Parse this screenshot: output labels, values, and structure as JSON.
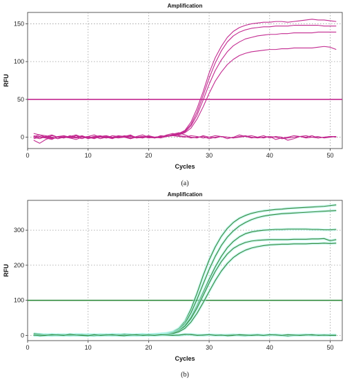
{
  "chart_data": [
    {
      "type": "line",
      "title": "Amplification",
      "xlabel": "Cycles",
      "ylabel": "RFU",
      "caption": "(a)",
      "xlim": [
        0,
        52
      ],
      "ylim": [
        -15,
        165
      ],
      "xticks": [
        0,
        10,
        20,
        30,
        40,
        50
      ],
      "yticks": [
        0,
        50,
        100,
        150
      ],
      "grid": true,
      "color": "#c2288f",
      "threshold": 50,
      "x": [
        1,
        2,
        3,
        4,
        5,
        6,
        7,
        8,
        9,
        10,
        11,
        12,
        13,
        14,
        15,
        16,
        17,
        18,
        19,
        20,
        21,
        22,
        23,
        24,
        25,
        26,
        27,
        28,
        29,
        30,
        31,
        32,
        33,
        34,
        35,
        36,
        37,
        38,
        39,
        40,
        41,
        42,
        43,
        44,
        45,
        46,
        47,
        48,
        49,
        50,
        51
      ],
      "series": [
        {
          "values": [
            0,
            1,
            -1,
            2,
            0,
            -1,
            1,
            0,
            2,
            -1,
            0,
            1,
            -1,
            0,
            2,
            1,
            -1,
            0,
            1,
            0,
            -1,
            2,
            1,
            3,
            5,
            9,
            20,
            38,
            60,
            85,
            105,
            120,
            132,
            140,
            145,
            148,
            150,
            151,
            152,
            152,
            153,
            153,
            152,
            153,
            154,
            155,
            156,
            155,
            155,
            154,
            153
          ]
        },
        {
          "values": [
            -2,
            0,
            1,
            -1,
            0,
            2,
            -1,
            0,
            1,
            -2,
            0,
            1,
            2,
            0,
            -1,
            0,
            1,
            -1,
            0,
            2,
            0,
            1,
            2,
            3,
            5,
            8,
            17,
            33,
            55,
            78,
            98,
            114,
            126,
            134,
            139,
            142,
            144,
            145,
            146,
            146,
            147,
            147,
            147,
            148,
            148,
            148,
            148,
            148,
            147,
            147,
            147
          ]
        },
        {
          "values": [
            5,
            3,
            0,
            -2,
            1,
            0,
            -1,
            2,
            0,
            1,
            -1,
            0,
            1,
            -1,
            0,
            2,
            1,
            0,
            -1,
            1,
            0,
            1,
            1,
            2,
            4,
            7,
            15,
            29,
            49,
            70,
            88,
            102,
            113,
            121,
            126,
            130,
            132,
            134,
            135,
            136,
            136,
            137,
            137,
            138,
            138,
            138,
            138,
            139,
            139,
            139,
            139
          ]
        },
        {
          "values": [
            -4,
            -8,
            -3,
            0,
            -2,
            1,
            -1,
            -3,
            0,
            -1,
            1,
            -2,
            0,
            -1,
            1,
            0,
            -2,
            0,
            1,
            -1,
            0,
            1,
            2,
            2,
            3,
            6,
            12,
            24,
            40,
            58,
            74,
            86,
            96,
            103,
            108,
            111,
            113,
            114,
            115,
            116,
            116,
            117,
            117,
            118,
            118,
            118,
            118,
            119,
            120,
            119,
            116
          ]
        },
        {
          "values": [
            0,
            -2,
            1,
            3,
            0,
            -1,
            2,
            0,
            -2,
            1,
            3,
            0,
            -1,
            2,
            1,
            0,
            -2,
            1,
            3,
            0,
            -1,
            2,
            1,
            4,
            6,
            3,
            0,
            -1,
            2,
            0,
            -1,
            1,
            -2,
            0,
            3,
            1,
            -1,
            0,
            2,
            -1,
            1,
            0,
            -4,
            -2,
            1,
            0,
            2,
            -1,
            0,
            1,
            0
          ]
        },
        {
          "values": [
            2,
            0,
            -1,
            -3,
            1,
            2,
            0,
            -1,
            1,
            0,
            -2,
            1,
            2,
            -1,
            0,
            1,
            3,
            -1,
            0,
            2,
            -1,
            0,
            3,
            5,
            2,
            1,
            -1,
            0,
            1,
            -2,
            0,
            1,
            0,
            -1,
            1,
            2,
            0,
            -1,
            0,
            1,
            -3,
            -1,
            0,
            2,
            1,
            -1,
            0,
            1,
            -1,
            0,
            1
          ]
        },
        {
          "values": [
            1,
            3,
            2,
            0,
            -2,
            0,
            1,
            3,
            0,
            -1,
            1,
            2,
            0,
            -2,
            1,
            0,
            2,
            0,
            -1,
            1,
            0,
            -1,
            1,
            2,
            1,
            0,
            2,
            1,
            -1,
            0,
            2,
            1,
            0,
            -1,
            0,
            1,
            2,
            0,
            -1,
            1,
            0,
            -2,
            -1,
            0,
            1,
            2,
            0,
            -1,
            0,
            1,
            1
          ]
        }
      ]
    },
    {
      "type": "line",
      "title": "Amplification",
      "xlabel": "Cycles",
      "ylabel": "RFU",
      "caption": "(b)",
      "xlim": [
        0,
        52
      ],
      "ylim": [
        -15,
        385
      ],
      "xticks": [
        0,
        10,
        20,
        30,
        40,
        50
      ],
      "yticks": [
        0,
        100,
        200,
        300
      ],
      "grid": true,
      "color": "#2f8a3b",
      "shadow_color": "#a8f0e6",
      "threshold": 100,
      "x": [
        1,
        2,
        3,
        4,
        5,
        6,
        7,
        8,
        9,
        10,
        11,
        12,
        13,
        14,
        15,
        16,
        17,
        18,
        19,
        20,
        21,
        22,
        23,
        24,
        25,
        26,
        27,
        28,
        29,
        30,
        31,
        32,
        33,
        34,
        35,
        36,
        37,
        38,
        39,
        40,
        41,
        42,
        43,
        44,
        45,
        46,
        47,
        48,
        49,
        50,
        51
      ],
      "series": [
        {
          "values": [
            2,
            3,
            1,
            0,
            2,
            1,
            0,
            3,
            2,
            1,
            0,
            2,
            1,
            3,
            2,
            0,
            1,
            2,
            3,
            1,
            2,
            4,
            6,
            10,
            20,
            40,
            75,
            120,
            170,
            215,
            252,
            282,
            305,
            322,
            334,
            342,
            348,
            352,
            355,
            357,
            359,
            360,
            362,
            363,
            364,
            365,
            366,
            367,
            368,
            370,
            372
          ]
        },
        {
          "values": [
            0,
            2,
            1,
            3,
            1,
            0,
            2,
            1,
            0,
            2,
            1,
            0,
            1,
            2,
            0,
            1,
            2,
            1,
            0,
            2,
            3,
            4,
            5,
            9,
            17,
            34,
            64,
            103,
            146,
            188,
            225,
            256,
            280,
            298,
            312,
            322,
            330,
            336,
            340,
            343,
            345,
            347,
            348,
            349,
            350,
            351,
            352,
            353,
            354,
            355,
            356
          ]
        },
        {
          "values": [
            1,
            0,
            2,
            1,
            0,
            1,
            2,
            0,
            1,
            2,
            0,
            1,
            2,
            1,
            0,
            2,
            1,
            0,
            1,
            2,
            2,
            3,
            4,
            7,
            14,
            28,
            52,
            85,
            122,
            160,
            195,
            225,
            250,
            268,
            281,
            290,
            295,
            298,
            300,
            301,
            302,
            302,
            303,
            303,
            303,
            303,
            302,
            302,
            301,
            301,
            302
          ]
        },
        {
          "values": [
            3,
            1,
            0,
            2,
            1,
            2,
            0,
            1,
            2,
            0,
            1,
            2,
            0,
            1,
            2,
            1,
            0,
            1,
            2,
            1,
            2,
            3,
            4,
            7,
            13,
            26,
            48,
            78,
            113,
            149,
            182,
            210,
            232,
            248,
            258,
            265,
            269,
            271,
            272,
            273,
            273,
            273,
            273,
            274,
            274,
            274,
            275,
            275,
            276,
            270,
            273
          ]
        },
        {
          "values": [
            0,
            1,
            2,
            0,
            1,
            0,
            2,
            1,
            0,
            1,
            2,
            0,
            1,
            0,
            2,
            1,
            0,
            1,
            2,
            0,
            1,
            2,
            3,
            5,
            10,
            20,
            38,
            63,
            93,
            125,
            156,
            183,
            205,
            222,
            234,
            243,
            249,
            253,
            256,
            258,
            259,
            260,
            260,
            261,
            261,
            261,
            262,
            262,
            263,
            262,
            263
          ]
        },
        {
          "values": [
            5,
            3,
            1,
            0,
            2,
            1,
            0,
            1,
            2,
            0,
            -1,
            1,
            2,
            0,
            1,
            3,
            2,
            0,
            1,
            2,
            0,
            1,
            2,
            1,
            0,
            2,
            3,
            1,
            0,
            2,
            1,
            0,
            1,
            2,
            0,
            -1,
            1,
            2,
            0,
            1,
            2,
            0,
            -2,
            0,
            1,
            2,
            0,
            1,
            0,
            1,
            1
          ]
        },
        {
          "values": [
            1,
            -1,
            0,
            2,
            1,
            0,
            3,
            1,
            0,
            -1,
            2,
            0,
            1,
            2,
            0,
            -1,
            1,
            2,
            0,
            1,
            0,
            2,
            1,
            0,
            1,
            3,
            2,
            0,
            1,
            2,
            0,
            1,
            -1,
            0,
            2,
            1,
            0,
            1,
            0,
            2,
            1,
            0,
            2,
            1,
            0,
            1,
            2,
            0,
            1,
            0,
            0
          ]
        }
      ]
    }
  ]
}
